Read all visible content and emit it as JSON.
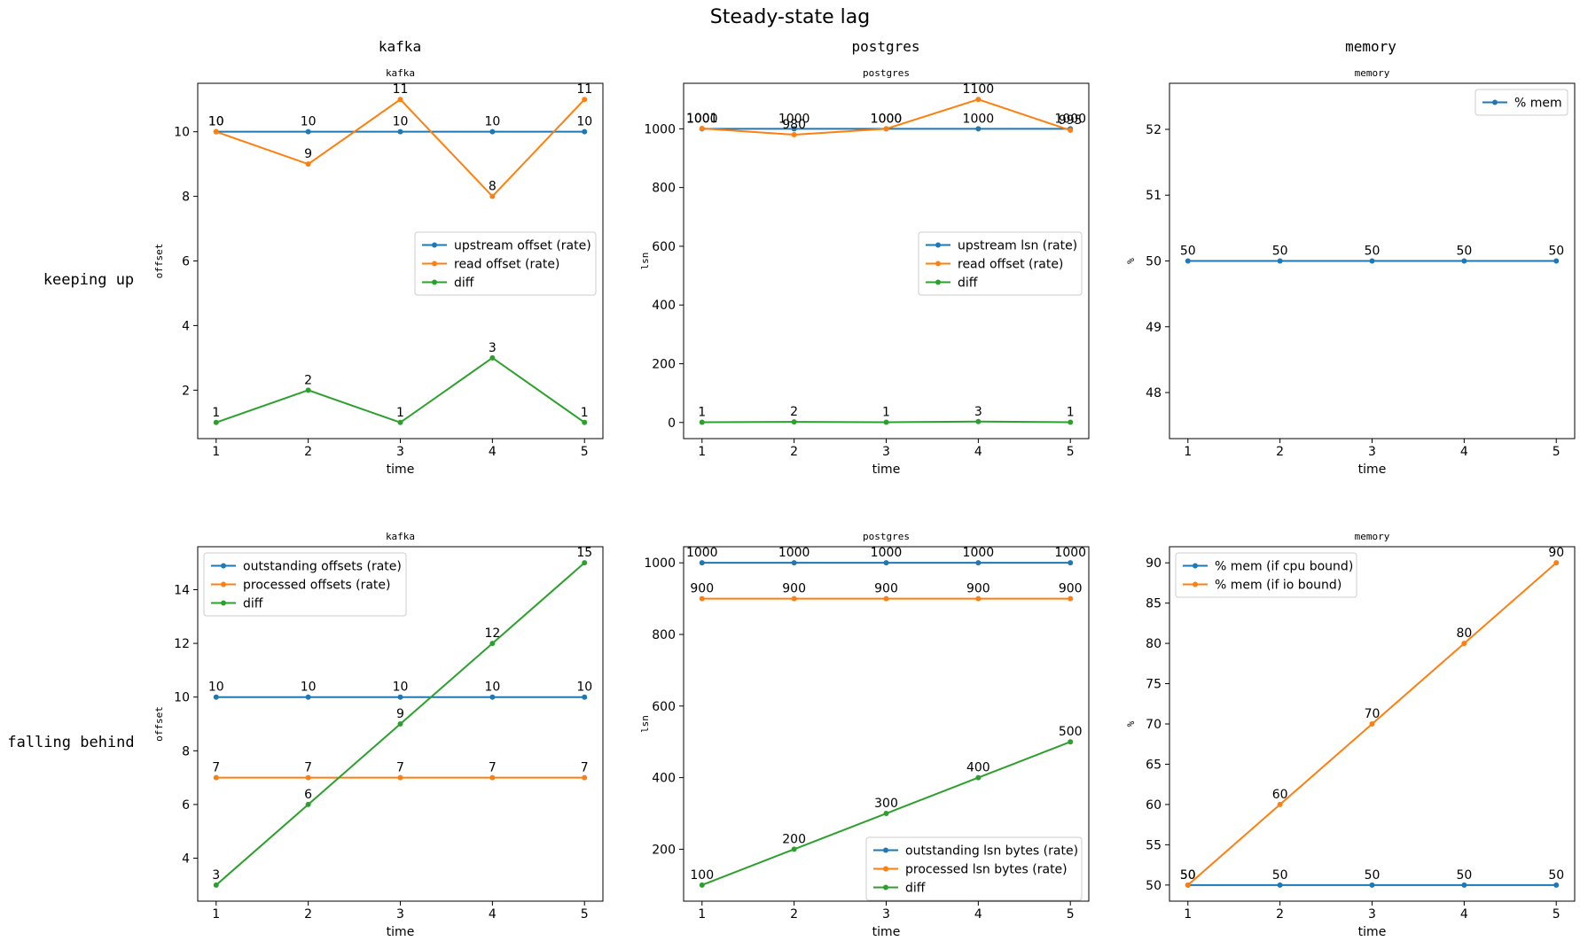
{
  "title": "Steady-state lag",
  "column_titles": [
    "kafka",
    "postgres",
    "memory"
  ],
  "row_labels": [
    "keeping up",
    "falling behind"
  ],
  "colors": {
    "blue": "#1f77b4",
    "orange": "#ff7f0e",
    "green": "#2ca02c"
  },
  "chart_data": [
    {
      "type": "line",
      "title": "kafka",
      "xlabel": "time",
      "ylabel": "offset",
      "x": [
        1,
        2,
        3,
        4,
        5
      ],
      "xlim": [
        0.8,
        5.2
      ],
      "ylim": [
        0.5,
        11.5
      ],
      "yticks": [
        2,
        4,
        6,
        8,
        10
      ],
      "legend": "center-right",
      "series": [
        {
          "name": "upstream offset (rate)",
          "color": "#1f77b4",
          "values": [
            10,
            10,
            10,
            10,
            10
          ]
        },
        {
          "name": "read offset (rate)",
          "color": "#ff7f0e",
          "values": [
            10,
            9,
            11,
            8,
            11
          ]
        },
        {
          "name": "diff",
          "color": "#2ca02c",
          "values": [
            1,
            2,
            1,
            3,
            1
          ]
        }
      ]
    },
    {
      "type": "line",
      "title": "postgres",
      "xlabel": "time",
      "ylabel": "lsn",
      "x": [
        1,
        2,
        3,
        4,
        5
      ],
      "xlim": [
        0.8,
        5.2
      ],
      "ylim": [
        -55,
        1155
      ],
      "yticks": [
        0,
        200,
        400,
        600,
        800,
        1000
      ],
      "legend": "center-right",
      "series": [
        {
          "name": "upstream lsn (rate)",
          "color": "#1f77b4",
          "values": [
            1000,
            1000,
            1000,
            1000,
            1000
          ]
        },
        {
          "name": "read offset (rate)",
          "color": "#ff7f0e",
          "values": [
            1001,
            980,
            1000,
            1100,
            995
          ]
        },
        {
          "name": "diff",
          "color": "#2ca02c",
          "values": [
            1,
            2,
            1,
            3,
            1
          ]
        }
      ]
    },
    {
      "type": "line",
      "title": "memory",
      "xlabel": "time",
      "ylabel": "%",
      "x": [
        1,
        2,
        3,
        4,
        5
      ],
      "xlim": [
        0.8,
        5.2
      ],
      "ylim": [
        47.3,
        52.7
      ],
      "yticks": [
        48,
        49,
        50,
        51,
        52
      ],
      "legend": "top-right",
      "series": [
        {
          "name": "% mem",
          "color": "#1f77b4",
          "values": [
            50,
            50,
            50,
            50,
            50
          ]
        }
      ]
    },
    {
      "type": "line",
      "title": "kafka",
      "xlabel": "time",
      "ylabel": "offset",
      "x": [
        1,
        2,
        3,
        4,
        5
      ],
      "xlim": [
        0.8,
        5.2
      ],
      "ylim": [
        2.4,
        15.6
      ],
      "yticks": [
        4,
        6,
        8,
        10,
        12,
        14
      ],
      "legend": "top-left",
      "series": [
        {
          "name": "outstanding offsets (rate)",
          "color": "#1f77b4",
          "values": [
            10,
            10,
            10,
            10,
            10
          ]
        },
        {
          "name": "processed offsets (rate)",
          "color": "#ff7f0e",
          "values": [
            7,
            7,
            7,
            7,
            7
          ]
        },
        {
          "name": "diff",
          "color": "#2ca02c",
          "values": [
            3,
            6,
            9,
            12,
            15
          ]
        }
      ]
    },
    {
      "type": "line",
      "title": "postgres",
      "xlabel": "time",
      "ylabel": "lsn",
      "x": [
        1,
        2,
        3,
        4,
        5
      ],
      "xlim": [
        0.8,
        5.2
      ],
      "ylim": [
        55,
        1045
      ],
      "yticks": [
        200,
        400,
        600,
        800,
        1000
      ],
      "legend": "bottom-right",
      "series": [
        {
          "name": "outstanding lsn bytes (rate)",
          "color": "#1f77b4",
          "values": [
            1000,
            1000,
            1000,
            1000,
            1000
          ]
        },
        {
          "name": "processed lsn bytes (rate)",
          "color": "#ff7f0e",
          "values": [
            900,
            900,
            900,
            900,
            900
          ]
        },
        {
          "name": "diff",
          "color": "#2ca02c",
          "values": [
            100,
            200,
            300,
            400,
            500
          ]
        }
      ]
    },
    {
      "type": "line",
      "title": "memory",
      "xlabel": "time",
      "ylabel": "%",
      "x": [
        1,
        2,
        3,
        4,
        5
      ],
      "xlim": [
        0.8,
        5.2
      ],
      "ylim": [
        48,
        92
      ],
      "yticks": [
        50,
        55,
        60,
        65,
        70,
        75,
        80,
        85,
        90
      ],
      "legend": "top-left",
      "series": [
        {
          "name": "% mem (if cpu bound)",
          "color": "#1f77b4",
          "values": [
            50,
            50,
            50,
            50,
            50
          ]
        },
        {
          "name": "% mem (if io bound)",
          "color": "#ff7f0e",
          "values": [
            50,
            60,
            70,
            80,
            90
          ]
        }
      ]
    }
  ]
}
